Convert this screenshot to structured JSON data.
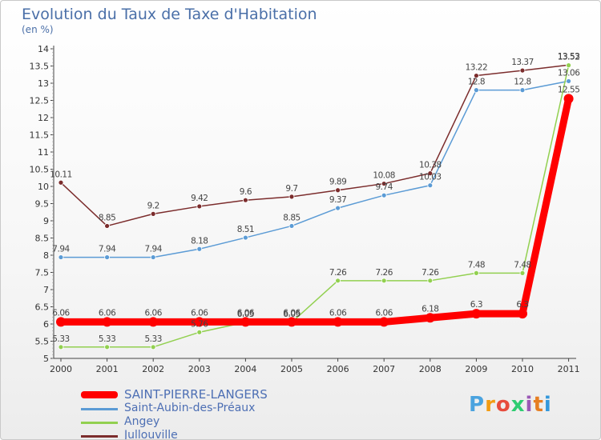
{
  "title": "Evolution du Taux de Taxe d'Habitation",
  "unit_label": "(en %)",
  "logo": {
    "text": "Proxiti",
    "letters": [
      "P",
      "r",
      "o",
      "x",
      "i",
      "t",
      "i"
    ],
    "colors": [
      "#4aa3df",
      "#f39c12",
      "#e74c3c",
      "#2ecc71",
      "#9b59b6",
      "#e67e22",
      "#3498db"
    ]
  },
  "chart_data": {
    "type": "line",
    "title": "Evolution du Taux de Taxe d'Habitation",
    "ylabel": "(en %)",
    "xlabel": "",
    "ylim": [
      5,
      14
    ],
    "yticks": [
      "5",
      "5.5",
      "6",
      "6.5",
      "7",
      "7.5",
      "8",
      "8.5",
      "9",
      "9.5",
      "10",
      "10.5",
      "11",
      "11.5",
      "12",
      "12.5",
      "13",
      "13.5",
      "14"
    ],
    "x": [
      "2000",
      "2001",
      "2002",
      "2003",
      "2004",
      "2005",
      "2006",
      "2007",
      "2008",
      "2009",
      "2010",
      "2011"
    ],
    "grid": false,
    "legend_position": "bottom-left",
    "series": [
      {
        "name": "SAINT-PIERRE-LANGERS",
        "color": "#ff0000",
        "values": [
          6.06,
          6.06,
          6.06,
          6.06,
          6.06,
          6.06,
          6.06,
          6.06,
          6.18,
          6.3,
          6.3,
          12.55
        ],
        "labels": [
          "6.06",
          "6.06",
          "6.06",
          "6.06",
          "6.06",
          "6.06",
          "6.06",
          "6.06",
          "6.18",
          "6.3",
          "6.3",
          "12.55"
        ]
      },
      {
        "name": "Saint-Aubin-des-Préaux",
        "color": "#5b9bd5",
        "values": [
          7.94,
          7.94,
          7.94,
          8.18,
          8.51,
          8.85,
          9.37,
          9.74,
          10.03,
          12.8,
          12.8,
          13.06
        ],
        "labels": [
          "7.94",
          "7.94",
          "7.94",
          "8.18",
          "8.51",
          "8.85",
          "9.37",
          "9.74",
          "10.03",
          "12.8",
          "12.8",
          "13.06"
        ]
      },
      {
        "name": "Angey",
        "color": "#92d050",
        "values": [
          5.33,
          5.33,
          5.33,
          5.76,
          6.05,
          6.05,
          7.26,
          7.26,
          7.26,
          7.48,
          7.48,
          13.52
        ],
        "labels": [
          "5.33",
          "5.33",
          "5.33",
          "5.76",
          "6.05",
          "6.05",
          "7.26",
          "7.26",
          "7.26",
          "7.48",
          "7.48",
          "13.52"
        ]
      },
      {
        "name": "Jullouville",
        "color": "#7b2c2c",
        "values": [
          10.11,
          8.85,
          9.2,
          9.42,
          9.6,
          9.7,
          9.89,
          10.08,
          10.38,
          13.22,
          13.37,
          13.53
        ],
        "labels": [
          "10.11",
          "8.85",
          "9.2",
          "9.42",
          "9.6",
          "9.7",
          "9.89",
          "10.08",
          "10.38",
          "13.22",
          "13.37",
          "13.53"
        ]
      }
    ]
  }
}
